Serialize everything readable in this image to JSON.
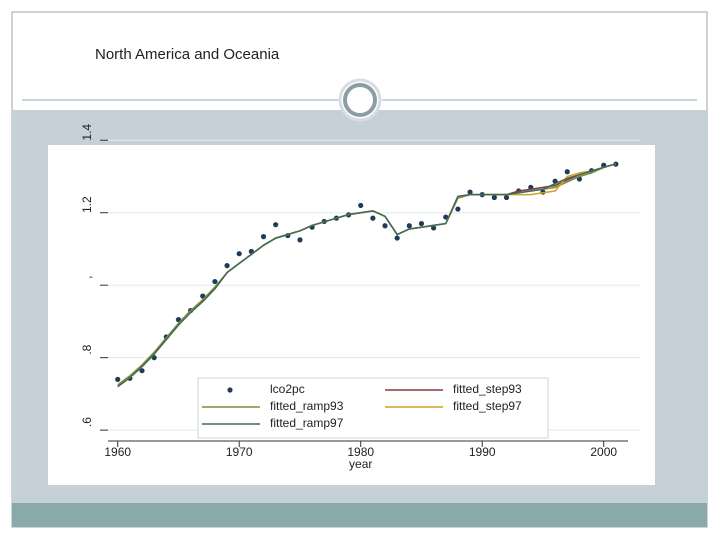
{
  "slide": {
    "title": "North America and Oceania"
  },
  "chart_data": {
    "type": "line",
    "xlabel": "year",
    "x": [
      1960,
      1961,
      1962,
      1963,
      1964,
      1965,
      1966,
      1967,
      1968,
      1969,
      1970,
      1971,
      1972,
      1973,
      1974,
      1975,
      1976,
      1977,
      1978,
      1979,
      1980,
      1981,
      1982,
      1983,
      1984,
      1985,
      1986,
      1987,
      1988,
      1989,
      1990,
      1991,
      1992,
      1993,
      1994,
      1995,
      1996,
      1997,
      1998,
      1999,
      2000,
      2001
    ],
    "series": [
      {
        "name": "lco2pc",
        "color": "#1f3a5a",
        "style": "markers",
        "values": [
          0.74,
          0.743,
          0.764,
          0.8,
          0.857,
          0.905,
          0.93,
          0.97,
          1.01,
          1.054,
          1.087,
          1.093,
          1.134,
          1.167,
          1.137,
          1.125,
          1.16,
          1.176,
          1.185,
          1.194,
          1.22,
          1.185,
          1.164,
          1.13,
          1.164,
          1.17,
          1.158,
          1.188,
          1.21,
          1.257,
          1.25,
          1.242,
          1.242,
          1.26,
          1.27,
          1.257,
          1.287,
          1.313,
          1.293,
          1.316,
          1.331,
          1.334
        ]
      },
      {
        "name": "fitted_step93",
        "color": "#8b3a3a",
        "style": "line",
        "values": [
          0.72,
          0.745,
          0.775,
          0.81,
          0.85,
          0.89,
          0.925,
          0.955,
          0.99,
          1.035,
          1.06,
          1.085,
          1.11,
          1.13,
          1.14,
          1.15,
          1.165,
          1.175,
          1.185,
          1.195,
          1.2,
          1.205,
          1.19,
          1.14,
          1.155,
          1.16,
          1.165,
          1.17,
          1.245,
          1.25,
          1.25,
          1.25,
          1.25,
          1.26,
          1.265,
          1.27,
          1.275,
          1.29,
          1.305,
          1.315,
          1.325,
          1.335
        ]
      },
      {
        "name": "fitted_ramp93",
        "color": "#7f8c3a",
        "style": "line",
        "values": [
          0.725,
          0.75,
          0.78,
          0.815,
          0.855,
          0.895,
          0.93,
          0.96,
          0.995,
          1.035,
          1.06,
          1.085,
          1.11,
          1.13,
          1.14,
          1.15,
          1.165,
          1.175,
          1.185,
          1.195,
          1.2,
          1.205,
          1.19,
          1.14,
          1.155,
          1.16,
          1.165,
          1.17,
          1.24,
          1.25,
          1.25,
          1.25,
          1.25,
          1.255,
          1.26,
          1.265,
          1.27,
          1.285,
          1.3,
          1.31,
          1.325,
          1.335
        ]
      },
      {
        "name": "fitted_step97",
        "color": "#d4a020",
        "style": "line",
        "values": [
          0.72,
          0.745,
          0.775,
          0.81,
          0.85,
          0.89,
          0.925,
          0.955,
          0.99,
          1.035,
          1.06,
          1.085,
          1.11,
          1.13,
          1.14,
          1.15,
          1.165,
          1.175,
          1.185,
          1.195,
          1.2,
          1.205,
          1.19,
          1.14,
          1.155,
          1.16,
          1.165,
          1.17,
          1.245,
          1.25,
          1.25,
          1.25,
          1.25,
          1.25,
          1.25,
          1.255,
          1.26,
          1.3,
          1.31,
          1.315,
          1.325,
          1.335
        ]
      },
      {
        "name": "fitted_ramp97",
        "color": "#3d6b5b",
        "style": "line",
        "values": [
          0.72,
          0.745,
          0.775,
          0.81,
          0.85,
          0.89,
          0.925,
          0.955,
          0.99,
          1.035,
          1.06,
          1.085,
          1.11,
          1.13,
          1.14,
          1.15,
          1.165,
          1.175,
          1.185,
          1.195,
          1.2,
          1.205,
          1.19,
          1.14,
          1.155,
          1.16,
          1.165,
          1.17,
          1.245,
          1.25,
          1.25,
          1.25,
          1.25,
          1.255,
          1.26,
          1.265,
          1.28,
          1.295,
          1.305,
          1.315,
          1.325,
          1.335
        ]
      }
    ],
    "xlim": [
      1959.2,
      2002
    ],
    "xticks": [
      1960,
      1970,
      1980,
      1990,
      2000
    ],
    "ylim": [
      0.57,
      1.42
    ],
    "yticks": [
      {
        "value": 0.6,
        "label": ".6"
      },
      {
        "value": 0.8,
        "label": ".8"
      },
      {
        "value": 1,
        "label": ","
      },
      1.2,
      1.4
    ],
    "grid": true,
    "legend": "bottom"
  }
}
